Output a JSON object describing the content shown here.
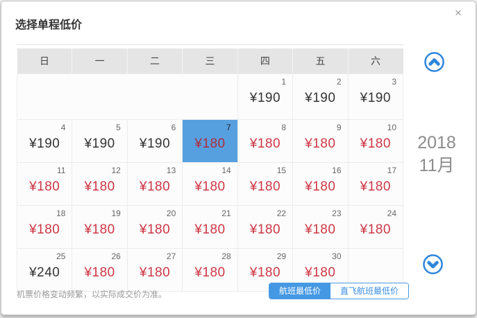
{
  "dialog": {
    "title": "选择单程低价",
    "close_icon": "×"
  },
  "calendar": {
    "weekdays": [
      "日",
      "一",
      "二",
      "三",
      "四",
      "五",
      "六"
    ],
    "year": "2018",
    "month": "11月",
    "rows": [
      {
        "cells": [
          {
            "empty": true,
            "span": 4
          },
          {
            "day": "1",
            "price": "¥190",
            "tone": "dark"
          },
          {
            "day": "2",
            "price": "¥190",
            "tone": "dark"
          },
          {
            "day": "3",
            "price": "¥190",
            "tone": "dark"
          }
        ]
      },
      {
        "cells": [
          {
            "day": "4",
            "price": "¥190",
            "tone": "dark"
          },
          {
            "day": "5",
            "price": "¥190",
            "tone": "dark"
          },
          {
            "day": "6",
            "price": "¥190",
            "tone": "dark"
          },
          {
            "day": "7",
            "price": "¥180",
            "tone": "red",
            "selected": true
          },
          {
            "day": "8",
            "price": "¥180",
            "tone": "red"
          },
          {
            "day": "9",
            "price": "¥180",
            "tone": "red"
          },
          {
            "day": "10",
            "price": "¥180",
            "tone": "red"
          }
        ]
      },
      {
        "cells": [
          {
            "day": "11",
            "price": "¥180",
            "tone": "red"
          },
          {
            "day": "12",
            "price": "¥180",
            "tone": "red"
          },
          {
            "day": "13",
            "price": "¥180",
            "tone": "red"
          },
          {
            "day": "14",
            "price": "¥180",
            "tone": "red"
          },
          {
            "day": "15",
            "price": "¥180",
            "tone": "red"
          },
          {
            "day": "16",
            "price": "¥180",
            "tone": "red"
          },
          {
            "day": "17",
            "price": "¥180",
            "tone": "red"
          }
        ]
      },
      {
        "cells": [
          {
            "day": "18",
            "price": "¥180",
            "tone": "red"
          },
          {
            "day": "19",
            "price": "¥180",
            "tone": "red"
          },
          {
            "day": "20",
            "price": "¥180",
            "tone": "red"
          },
          {
            "day": "21",
            "price": "¥180",
            "tone": "red"
          },
          {
            "day": "22",
            "price": "¥180",
            "tone": "red"
          },
          {
            "day": "23",
            "price": "¥180",
            "tone": "red"
          },
          {
            "day": "24",
            "price": "¥180",
            "tone": "red"
          }
        ]
      },
      {
        "cells": [
          {
            "day": "25",
            "price": "¥240",
            "tone": "dark"
          },
          {
            "day": "26",
            "price": "¥180",
            "tone": "red"
          },
          {
            "day": "27",
            "price": "¥180",
            "tone": "red"
          },
          {
            "day": "28",
            "price": "¥180",
            "tone": "red"
          },
          {
            "day": "29",
            "price": "¥180",
            "tone": "red"
          },
          {
            "day": "30",
            "price": "¥180",
            "tone": "red"
          },
          {
            "empty": true
          }
        ]
      }
    ]
  },
  "footer": {
    "disclaimer": "机票价格变动频繁，以实际成交价为准。",
    "buttons": [
      {
        "label": "航班最低价",
        "active": true
      },
      {
        "label": "直飞航班最低价",
        "active": false
      }
    ]
  },
  "icons": {
    "scroll_up": "chevron-up-circle",
    "scroll_down": "chevron-down-circle",
    "close": "x-mark"
  },
  "colors": {
    "accent_blue": "#2f86db",
    "selected_cell_blue": "#57a0e0",
    "price_red": "#ce3645",
    "price_dark": "#333333",
    "header_gray": "#e5e5e5",
    "active_button_blue": "#4598e3"
  }
}
